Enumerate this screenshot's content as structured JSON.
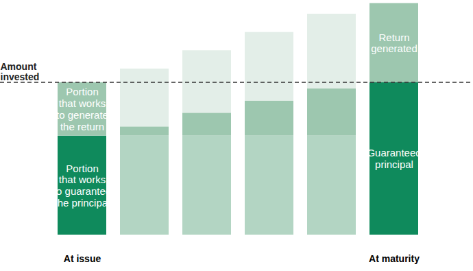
{
  "chart_data": {
    "type": "bar",
    "stacked": true,
    "tick_labels": "x",
    "categories": [
      "At issue",
      null,
      null,
      null,
      null,
      "At maturity"
    ],
    "ylim": [
      0,
      154
    ],
    "series": [
      {
        "values": [
          65,
          65,
          65,
          65,
          65,
          100
        ],
        "colors": [
          "#0f8a5c",
          "#b3d5c3",
          "#b3d5c3",
          "#b3d5c3",
          "#b3d5c3",
          "#0f8a5c"
        ],
        "labels": [
          "Portion\nthat works\nto guarantee\nthe principal",
          null,
          null,
          null,
          null,
          "Guaranteed\nprincipal"
        ]
      },
      {
        "values": [
          35,
          6,
          15,
          23,
          31,
          52
        ],
        "color": "#9dc7af",
        "labels": [
          "Portion\nthat works\nto generate\nthe return",
          null,
          null,
          null,
          null,
          "Return\ngenerated"
        ]
      },
      {
        "values": [
          0,
          38,
          41,
          45,
          49,
          0
        ],
        "color": "#e3eee8"
      }
    ],
    "reference_line": {
      "value": 100,
      "label": "Amount\ninvested",
      "line_style": "dashed"
    }
  }
}
